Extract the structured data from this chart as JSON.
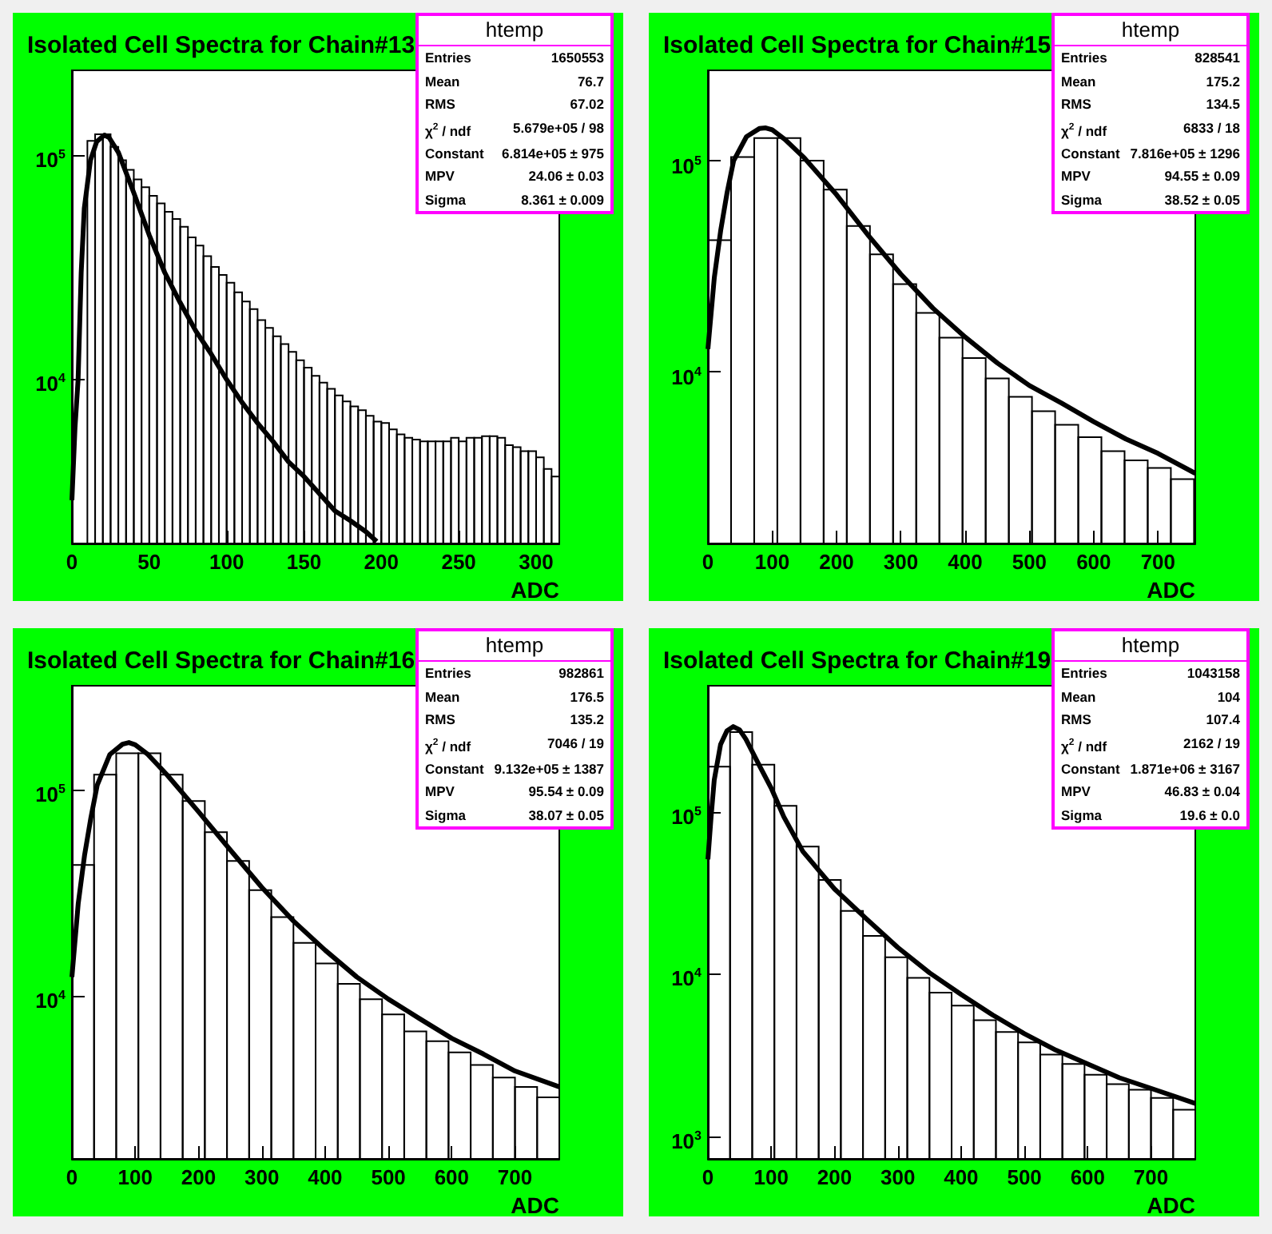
{
  "chart_data": [
    {
      "type": "histogram",
      "title": "Isolated Cell Spectra for Chain#13",
      "xlabel": "ADC",
      "log": "y",
      "marker": "none",
      "xlim": [
        0,
        315
      ],
      "xticks": [
        0,
        50,
        100,
        150,
        200,
        250,
        300
      ],
      "ylim": [
        1860,
        239000
      ],
      "yticks": [
        {
          "value": 10000,
          "label": "10$^{4}$"
        },
        {
          "value": 100000,
          "label": "10$^{5}$"
        }
      ],
      "annotations": [
        "htemp",
        "Entries",
        "1650553",
        "Mean",
        "76.7",
        "RMS",
        "67.02",
        "χ$^{2}$ / ndf",
        "5.679e+05 / 98",
        "Constant",
        "6.814e+05 ± 975",
        "MPV",
        "24.06 ± 0.03",
        "Sigma",
        "8.361 ± 0.009"
      ],
      "series": [
        {
          "type": "histogram",
          "color": "#000000",
          "bins": [
            10,
            15,
            20,
            25,
            30,
            35,
            40,
            45,
            50,
            55,
            60,
            65,
            70,
            75,
            80,
            85,
            90,
            95,
            100,
            105,
            110,
            115,
            120,
            125,
            130,
            135,
            140,
            145,
            150,
            155,
            160,
            165,
            170,
            175,
            180,
            185,
            190,
            195,
            200,
            205,
            210,
            215,
            220,
            225,
            230,
            235,
            240,
            245,
            250,
            255,
            260,
            265,
            270,
            275,
            280,
            285,
            290,
            295,
            300,
            305,
            310,
            315
          ],
          "values": [
            116000,
            124000,
            124000,
            109000,
            95000,
            86000,
            78000,
            72000,
            66000,
            61000,
            56000,
            52000,
            48000,
            43000,
            39600,
            35500,
            31800,
            29300,
            27000,
            24500,
            22300,
            20600,
            18400,
            17000,
            15600,
            14400,
            13300,
            12200,
            11300,
            10400,
            9700,
            9100,
            8500,
            8000,
            7600,
            7300,
            6900,
            6500,
            6400,
            6000,
            5700,
            5500,
            5400,
            5300,
            5300,
            5300,
            5300,
            5500,
            5300,
            5500,
            5500,
            5600,
            5600,
            5500,
            5100,
            5000,
            4800,
            4800,
            4500,
            4000,
            3700
          ]
        },
        {
          "type": "line",
          "color": "#000000",
          "x": [
            0,
            2,
            4,
            6,
            8,
            12,
            16,
            21,
            24,
            30,
            40,
            50,
            60,
            70,
            80,
            90,
            100,
            110,
            120,
            130,
            140,
            150,
            160,
            170,
            180,
            190,
            197
          ],
          "values": [
            2900,
            6100,
            10000,
            30000,
            58000,
            95000,
            115000,
            123000,
            120000,
            103000,
            68000,
            44000,
            30000,
            22000,
            16500,
            13000,
            10000,
            7900,
            6400,
            5300,
            4300,
            3700,
            3100,
            2600,
            2350,
            2100,
            1900
          ]
        }
      ]
    },
    {
      "type": "histogram",
      "title": "Isolated Cell Spectra for Chain#15",
      "xlabel": "ADC",
      "log": "y",
      "marker": "none",
      "xlim": [
        0,
        758
      ],
      "xticks": [
        0,
        100,
        200,
        300,
        400,
        500,
        600,
        700
      ],
      "ylim": [
        1535,
        268000
      ],
      "yticks": [
        {
          "value": 10000,
          "label": "10$^{4}$"
        },
        {
          "value": 100000,
          "label": "10$^{5}$"
        }
      ],
      "annotations": [
        "htemp",
        "Entries",
        "828541",
        "Mean",
        "175.2",
        "RMS",
        "134.5",
        "χ$^{2}$ / ndf",
        "6833 / 18",
        "Constant",
        "7.816e+05 ± 1296",
        "MPV",
        "94.55 ± 0.09",
        "Sigma",
        "38.52 ± 0.05"
      ],
      "series": [
        {
          "type": "histogram",
          "color": "#000000",
          "bins": [
            0,
            36,
            72,
            108,
            144,
            180,
            216,
            252,
            288,
            324,
            360,
            396,
            432,
            468,
            504,
            540,
            576,
            612,
            648,
            684,
            720,
            756
          ],
          "values": [
            42000,
            104000,
            128000,
            128000,
            100000,
            73000,
            49000,
            36000,
            26000,
            19000,
            14500,
            11600,
            9300,
            7600,
            6500,
            5600,
            4900,
            4200,
            3800,
            3500,
            3100
          ]
        },
        {
          "type": "line",
          "color": "#000000",
          "x": [
            0,
            10,
            20,
            30,
            40,
            60,
            80,
            90,
            100,
            120,
            150,
            200,
            250,
            300,
            350,
            400,
            450,
            500,
            550,
            600,
            650,
            700,
            758
          ],
          "values": [
            12800,
            28000,
            47000,
            71000,
            100000,
            130000,
            142000,
            143000,
            140000,
            126000,
            103000,
            69000,
            44000,
            29000,
            20000,
            14600,
            11000,
            8600,
            7100,
            5800,
            4800,
            4100,
            3300
          ]
        }
      ]
    },
    {
      "type": "histogram",
      "title": "Isolated Cell Spectra for Chain#16",
      "xlabel": "ADC",
      "log": "y",
      "marker": "none",
      "xlim": [
        0,
        770
      ],
      "xticks": [
        0,
        100,
        200,
        300,
        400,
        500,
        600,
        700
      ],
      "ylim": [
        1610,
        319000
      ],
      "yticks": [
        {
          "value": 10000,
          "label": "10$^{4}$"
        },
        {
          "value": 100000,
          "label": "10$^{5}$"
        }
      ],
      "annotations": [
        "htemp",
        "Entries",
        "982861",
        "Mean",
        "176.5",
        "RMS",
        "135.2",
        "χ$^{2}$ / ndf",
        "7046 / 19",
        "Constant",
        "9.132e+05 ± 1387",
        "MPV",
        "95.54 ± 0.09",
        "Sigma",
        "38.07 ± 0.05"
      ],
      "series": [
        {
          "type": "histogram",
          "color": "#000000",
          "bins": [
            0,
            35,
            70,
            105,
            140,
            175,
            210,
            245,
            280,
            315,
            350,
            385,
            420,
            455,
            490,
            525,
            560,
            595,
            630,
            665,
            700,
            735,
            770
          ],
          "values": [
            43000,
            118000,
            150000,
            150000,
            118000,
            88000,
            62000,
            45000,
            32500,
            24000,
            18000,
            14300,
            11400,
            9600,
            8100,
            6700,
            6000,
            5300,
            4600,
            4000,
            3600,
            3200
          ]
        },
        {
          "type": "line",
          "color": "#000000",
          "x": [
            0,
            10,
            20,
            30,
            40,
            60,
            80,
            90,
            100,
            120,
            150,
            200,
            250,
            300,
            350,
            400,
            450,
            500,
            550,
            600,
            650,
            700,
            770
          ],
          "values": [
            12300,
            28000,
            48000,
            73000,
            105000,
            148000,
            166000,
            169000,
            165000,
            148000,
            118000,
            78000,
            51000,
            33500,
            23000,
            16600,
            12300,
            9600,
            7700,
            6200,
            5200,
            4300,
            3600
          ]
        }
      ]
    },
    {
      "type": "histogram",
      "title": "Isolated Cell Spectra for Chain#19",
      "xlabel": "ADC",
      "log": "y",
      "marker": "none",
      "xlim": [
        0,
        770
      ],
      "xticks": [
        0,
        100,
        200,
        300,
        400,
        500,
        600,
        700
      ],
      "ylim": [
        728,
        598000
      ],
      "yticks": [
        {
          "value": 1000,
          "label": "10$^{3}$"
        },
        {
          "value": 10000,
          "label": "10$^{4}$"
        },
        {
          "value": 100000,
          "label": "10$^{5}$"
        }
      ],
      "annotations": [
        "htemp",
        "Entries",
        "1043158",
        "Mean",
        "104",
        "RMS",
        "107.4",
        "χ$^{2}$ / ndf",
        "2162 / 19",
        "Constant",
        "1.871e+06 ± 3167",
        "MPV",
        "46.83 ± 0.04",
        "Sigma",
        "19.6 ± 0.0"
      ],
      "series": [
        {
          "type": "histogram",
          "color": "#000000",
          "bins": [
            0,
            35,
            70,
            105,
            140,
            175,
            210,
            245,
            280,
            315,
            350,
            385,
            420,
            455,
            490,
            525,
            560,
            595,
            630,
            665,
            700,
            735,
            770
          ],
          "values": [
            190000,
            310000,
            195000,
            109000,
            61000,
            38000,
            24500,
            17200,
            12700,
            9500,
            7700,
            6400,
            5200,
            4400,
            3800,
            3200,
            2800,
            2400,
            2100,
            1940,
            1730,
            1460
          ]
        },
        {
          "type": "line",
          "color": "#000000",
          "x": [
            0,
            5,
            10,
            20,
            30,
            40,
            50,
            60,
            80,
            100,
            120,
            150,
            200,
            250,
            300,
            350,
            400,
            450,
            500,
            550,
            600,
            650,
            700,
            770
          ],
          "values": [
            51000,
            93000,
            157000,
            260000,
            315000,
            335000,
            320000,
            280000,
            197000,
            140000,
            93000,
            57000,
            33500,
            22000,
            14600,
            10200,
            7500,
            5600,
            4300,
            3400,
            2800,
            2300,
            1980,
            1600
          ]
        }
      ]
    }
  ]
}
